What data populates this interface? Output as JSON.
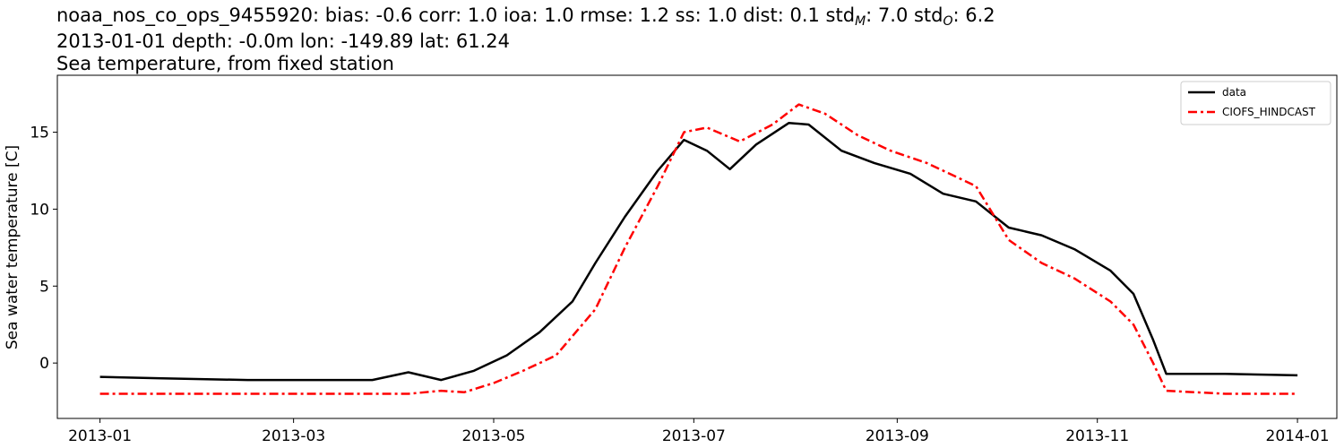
{
  "header": {
    "station_prefix": "noaa_nos_co_ops_9455920: bias: -0.6  corr: 1.0  ioa: 1.0  rmse: 1.2  ss: 1.0  dist: 0.1  std",
    "std_m_sub": "M",
    "std_m_value": ": 7.0  std",
    "std_o_sub": "O",
    "std_o_value": ": 6.2",
    "line2": "2013-01-01 depth: -0.0m lon: -149.89 lat: 61.24",
    "line3": "Sea temperature, from fixed station"
  },
  "chart_data": {
    "type": "line",
    "ylabel": "Sea water temperature [C]",
    "xlabel": "",
    "xlim": [
      "2012-12-19",
      "2014-01-13"
    ],
    "ylim": [
      -3.6,
      18.7
    ],
    "x_ticks": [
      "2013-01",
      "2013-03",
      "2013-05",
      "2013-07",
      "2013-09",
      "2013-11",
      "2014-01"
    ],
    "y_ticks": [
      0,
      5,
      10,
      15
    ],
    "legend_position": "top-right",
    "grid": false,
    "series": [
      {
        "name": "data",
        "color": "#000000",
        "style": "solid",
        "points": [
          [
            "2013-01-01",
            -0.9
          ],
          [
            "2013-01-20",
            -1.0
          ],
          [
            "2013-02-15",
            -1.1
          ],
          [
            "2013-03-10",
            -1.1
          ],
          [
            "2013-03-25",
            -1.1
          ],
          [
            "2013-04-05",
            -0.6
          ],
          [
            "2013-04-15",
            -1.1
          ],
          [
            "2013-04-25",
            -0.5
          ],
          [
            "2013-05-05",
            0.5
          ],
          [
            "2013-05-15",
            2.0
          ],
          [
            "2013-05-25",
            4.0
          ],
          [
            "2013-06-01",
            6.5
          ],
          [
            "2013-06-10",
            9.5
          ],
          [
            "2013-06-20",
            12.5
          ],
          [
            "2013-06-28",
            14.5
          ],
          [
            "2013-07-05",
            13.8
          ],
          [
            "2013-07-12",
            12.6
          ],
          [
            "2013-07-20",
            14.2
          ],
          [
            "2013-07-30",
            15.6
          ],
          [
            "2013-08-05",
            15.5
          ],
          [
            "2013-08-15",
            13.8
          ],
          [
            "2013-08-25",
            13.0
          ],
          [
            "2013-09-05",
            12.3
          ],
          [
            "2013-09-15",
            11.0
          ],
          [
            "2013-09-25",
            10.5
          ],
          [
            "2013-10-05",
            8.8
          ],
          [
            "2013-10-15",
            8.3
          ],
          [
            "2013-10-25",
            7.4
          ],
          [
            "2013-11-05",
            6.0
          ],
          [
            "2013-11-12",
            4.5
          ],
          [
            "2013-11-18",
            1.5
          ],
          [
            "2013-11-22",
            -0.7
          ],
          [
            "2013-12-10",
            -0.7
          ],
          [
            "2014-01-01",
            -0.8
          ]
        ]
      },
      {
        "name": "CIOFS_HINDCAST",
        "color": "#ff0000",
        "style": "dashdot",
        "points": [
          [
            "2013-01-01",
            -2.0
          ],
          [
            "2013-02-15",
            -2.0
          ],
          [
            "2013-03-20",
            -2.0
          ],
          [
            "2013-04-05",
            -2.0
          ],
          [
            "2013-04-15",
            -1.8
          ],
          [
            "2013-04-22",
            -1.9
          ],
          [
            "2013-05-01",
            -1.3
          ],
          [
            "2013-05-10",
            -0.5
          ],
          [
            "2013-05-20",
            0.5
          ],
          [
            "2013-06-01",
            3.5
          ],
          [
            "2013-06-10",
            7.5
          ],
          [
            "2013-06-20",
            11.5
          ],
          [
            "2013-06-28",
            15.0
          ],
          [
            "2013-07-05",
            15.3
          ],
          [
            "2013-07-15",
            14.4
          ],
          [
            "2013-07-25",
            15.5
          ],
          [
            "2013-08-02",
            16.8
          ],
          [
            "2013-08-10",
            16.2
          ],
          [
            "2013-08-20",
            14.8
          ],
          [
            "2013-08-30",
            13.8
          ],
          [
            "2013-09-10",
            13.0
          ],
          [
            "2013-09-25",
            11.5
          ],
          [
            "2013-10-05",
            8.0
          ],
          [
            "2013-10-15",
            6.5
          ],
          [
            "2013-10-25",
            5.5
          ],
          [
            "2013-11-05",
            4.0
          ],
          [
            "2013-11-12",
            2.5
          ],
          [
            "2013-11-18",
            0.0
          ],
          [
            "2013-11-22",
            -1.8
          ],
          [
            "2013-12-10",
            -2.0
          ],
          [
            "2014-01-01",
            -2.0
          ]
        ]
      }
    ]
  }
}
